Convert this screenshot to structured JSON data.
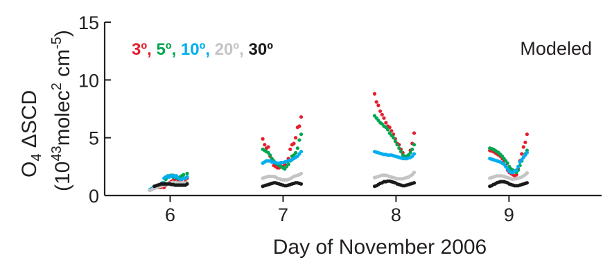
{
  "chart_data": {
    "type": "scatter",
    "title": "",
    "xlabel": "Day of November 2006",
    "ylabel": {
      "line1_a": "O",
      "line1_sub": "4",
      "line1_b": " ΔSCD",
      "line2_a": "(10",
      "line2_sup1": "43",
      "line2_b": "molec",
      "line2_sup2": "2",
      "line2_c": " cm",
      "line2_sup3": "-5",
      "line2_d": ")"
    },
    "annotation": "Modeled",
    "xlim": [
      5.42,
      9.82
    ],
    "ylim": [
      0,
      15
    ],
    "x_ticks": [
      6,
      7,
      8,
      9
    ],
    "x_tick_labels": [
      "6",
      "7",
      "8",
      "9"
    ],
    "y_ticks": [
      0,
      5,
      10,
      15
    ],
    "y_tick_labels": [
      "0",
      "5",
      "10",
      "15"
    ],
    "grid": false,
    "legend": {
      "placement": "top-left",
      "entries": [
        {
          "label": "3º",
          "sep": ", ",
          "color": "#e31e2d"
        },
        {
          "label": "5º",
          "sep": ", ",
          "color": "#00a651"
        },
        {
          "label": "10º",
          "sep": ", ",
          "color": "#00aeef"
        },
        {
          "label": "20º",
          "sep": ", ",
          "color": "#c4c4c4"
        },
        {
          "label": "30º",
          "sep": "",
          "color": "#1a1a1a"
        }
      ]
    },
    "series": [
      {
        "name": "3º",
        "color": "#e31e2d",
        "days": [
          {
            "start": 5.82,
            "end": 6.15,
            "values": [
              0.45,
              0.55,
              0.6,
              0.75,
              0.8,
              0.7,
              0.7,
              0.75,
              0.7,
              0.9,
              1.0,
              1.1,
              1.2,
              1.3,
              1.4,
              1.45,
              1.3,
              1.3,
              1.4,
              1.5,
              1.2,
              1.5
            ]
          },
          {
            "start": 6.82,
            "end": 7.16,
            "values": [
              4.9,
              4.4,
              4.1,
              4.2,
              3.4,
              3.1,
              2.6,
              2.5,
              2.4,
              2.4,
              2.8,
              2.5,
              2.7,
              2.6,
              3.2,
              4.0,
              4.4,
              4.5,
              5.0,
              5.9,
              6.0,
              6.8
            ]
          },
          {
            "start": 7.81,
            "end": 8.16,
            "values": [
              8.8,
              8.1,
              7.8,
              7.3,
              7.0,
              6.7,
              6.3,
              6.0,
              5.9,
              5.6,
              5.3,
              4.9,
              4.5,
              4.4,
              4.0,
              3.7,
              3.4,
              3.2,
              3.5,
              3.9,
              4.5,
              5.4
            ]
          },
          {
            "start": 8.83,
            "end": 9.16,
            "values": [
              3.9,
              3.85,
              3.8,
              3.7,
              3.6,
              3.5,
              3.4,
              3.2,
              3.0,
              2.6,
              2.2,
              2.0,
              1.9,
              1.8,
              1.7,
              1.8,
              2.3,
              3.0,
              3.6,
              4.2,
              4.6,
              5.3
            ]
          }
        ]
      },
      {
        "name": "5º",
        "color": "#00a651",
        "days": [
          {
            "start": 5.82,
            "end": 6.15,
            "values": [
              0.5,
              0.6,
              0.7,
              0.75,
              0.75,
              0.75,
              0.8,
              0.9,
              1.1,
              1.4,
              1.6,
              1.7,
              1.75,
              1.6,
              1.7,
              1.5,
              1.5,
              1.6,
              1.7,
              1.8,
              1.5,
              1.9
            ]
          },
          {
            "start": 6.82,
            "end": 7.16,
            "values": [
              4.0,
              3.9,
              3.8,
              3.7,
              3.5,
              3.2,
              3.0,
              2.8,
              2.7,
              2.6,
              2.5,
              2.4,
              2.3,
              2.5,
              2.7,
              3.0,
              3.4,
              3.5,
              3.7,
              4.1,
              4.8,
              5.3
            ]
          },
          {
            "start": 7.81,
            "end": 8.16,
            "values": [
              6.9,
              6.7,
              6.5,
              6.3,
              6.2,
              6.0,
              5.9,
              5.7,
              5.4,
              5.2,
              5.0,
              4.7,
              4.4,
              4.1,
              3.8,
              3.5,
              3.3,
              3.4,
              3.5,
              3.7,
              4.0,
              4.4
            ]
          },
          {
            "start": 8.83,
            "end": 9.16,
            "values": [
              4.1,
              4.05,
              4.0,
              3.9,
              3.8,
              3.7,
              3.55,
              3.4,
              3.2,
              3.0,
              2.8,
              2.5,
              2.3,
              2.2,
              2.1,
              2.0,
              2.2,
              2.6,
              3.0,
              3.3,
              3.6,
              3.9
            ]
          }
        ]
      },
      {
        "name": "10º",
        "color": "#00aeef",
        "days": [
          {
            "start": 5.82,
            "end": 6.15,
            "values": [
              0.5,
              0.6,
              0.7,
              0.75,
              0.75,
              0.8,
              0.9,
              1.1,
              1.5,
              1.6,
              1.7,
              1.6,
              1.7,
              1.75,
              1.6,
              1.7,
              1.5,
              1.4,
              1.4,
              1.5,
              1.5,
              1.6
            ]
          },
          {
            "start": 6.82,
            "end": 7.16,
            "values": [
              2.8,
              2.9,
              3.0,
              3.0,
              3.0,
              2.9,
              2.9,
              2.85,
              2.8,
              2.8,
              2.85,
              2.85,
              2.9,
              2.95,
              3.0,
              3.05,
              3.1,
              3.2,
              3.3,
              3.4,
              3.6,
              3.8
            ]
          },
          {
            "start": 7.81,
            "end": 8.16,
            "values": [
              3.8,
              3.75,
              3.7,
              3.65,
              3.6,
              3.55,
              3.55,
              3.5,
              3.5,
              3.5,
              3.45,
              3.4,
              3.35,
              3.3,
              3.25,
              3.2,
              3.2,
              3.2,
              3.25,
              3.3,
              3.4,
              3.6
            ]
          },
          {
            "start": 8.83,
            "end": 9.16,
            "values": [
              3.2,
              3.15,
              3.1,
              3.05,
              3.0,
              2.95,
              2.9,
              2.8,
              2.7,
              2.5,
              2.3,
              2.1,
              2.0,
              2.0,
              2.1,
              2.2,
              2.5,
              2.9,
              3.1,
              3.3,
              3.5,
              3.7
            ]
          }
        ]
      },
      {
        "name": "20º",
        "color": "#c4c4c4",
        "days": [
          {
            "start": 5.82,
            "end": 6.15,
            "values": [
              0.45,
              0.5,
              0.6,
              0.65,
              0.7,
              0.75,
              0.8,
              0.85,
              0.9,
              0.95,
              1.0,
              1.05,
              1.1,
              1.15,
              1.1,
              1.1,
              1.1,
              1.1,
              1.1,
              1.1,
              1.1,
              1.1
            ]
          },
          {
            "start": 6.82,
            "end": 7.16,
            "values": [
              1.5,
              1.55,
              1.6,
              1.65,
              1.65,
              1.65,
              1.65,
              1.6,
              1.5,
              1.45,
              1.4,
              1.35,
              1.35,
              1.35,
              1.4,
              1.45,
              1.55,
              1.65,
              1.7,
              1.75,
              1.8,
              1.9
            ]
          },
          {
            "start": 7.81,
            "end": 8.16,
            "values": [
              1.55,
              1.6,
              1.65,
              1.7,
              1.75,
              1.75,
              1.75,
              1.7,
              1.65,
              1.6,
              1.55,
              1.5,
              1.45,
              1.45,
              1.45,
              1.45,
              1.5,
              1.55,
              1.6,
              1.7,
              1.8,
              2.0
            ]
          },
          {
            "start": 8.83,
            "end": 9.16,
            "values": [
              1.5,
              1.55,
              1.6,
              1.65,
              1.7,
              1.7,
              1.7,
              1.7,
              1.65,
              1.6,
              1.55,
              1.5,
              1.45,
              1.4,
              1.45,
              1.45,
              1.5,
              1.55,
              1.6,
              1.7,
              1.8,
              1.95
            ]
          }
        ]
      },
      {
        "name": "30º",
        "color": "#1a1a1a",
        "days": [
          {
            "start": 5.86,
            "end": 6.15,
            "values": [
              0.8,
              0.85,
              0.9,
              0.95,
              1.0,
              1.0,
              1.0,
              1.0,
              1.0,
              1.0,
              0.95,
              0.95,
              0.9,
              0.9,
              0.9,
              0.9,
              0.9,
              0.9,
              0.9,
              1.0
            ]
          },
          {
            "start": 6.82,
            "end": 7.16,
            "values": [
              0.8,
              0.85,
              0.9,
              0.95,
              1.0,
              1.05,
              1.1,
              1.1,
              1.05,
              1.0,
              0.95,
              0.9,
              0.85,
              0.85,
              0.9,
              0.95,
              1.0,
              1.05,
              1.1,
              1.1,
              1.05,
              1.0
            ]
          },
          {
            "start": 7.81,
            "end": 8.16,
            "values": [
              0.8,
              0.85,
              0.95,
              1.05,
              1.1,
              1.2,
              1.2,
              1.25,
              1.25,
              1.2,
              1.15,
              1.1,
              1.0,
              0.95,
              0.9,
              0.85,
              0.85,
              0.9,
              0.95,
              1.0,
              1.05,
              1.1
            ]
          },
          {
            "start": 8.83,
            "end": 9.16,
            "values": [
              0.8,
              0.85,
              0.95,
              1.0,
              1.1,
              1.15,
              1.2,
              1.2,
              1.2,
              1.15,
              1.1,
              1.0,
              0.95,
              0.9,
              0.85,
              0.85,
              0.85,
              0.9,
              0.95,
              1.0,
              1.05,
              1.1
            ]
          }
        ]
      }
    ]
  }
}
